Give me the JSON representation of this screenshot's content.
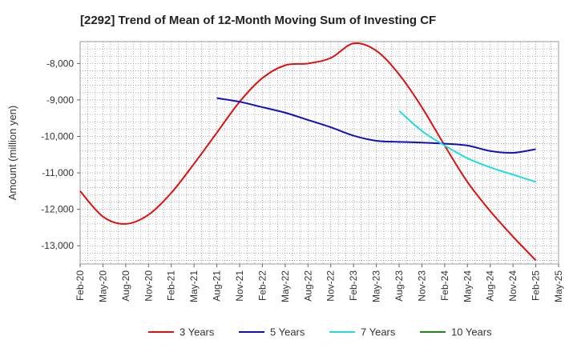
{
  "chart_data": {
    "type": "line",
    "title": "[2292]  Trend of Mean of 12-Month Moving Sum of Investing CF",
    "xlabel": "",
    "ylabel": "Amount (million yen)",
    "ylim": [
      -13500,
      -7400
    ],
    "yticks": [
      -8000,
      -9000,
      -10000,
      -11000,
      -12000,
      -13000
    ],
    "ytick_labels": [
      "-8,000",
      "-9,000",
      "-10,000",
      "-11,000",
      "-12,000",
      "-13,000"
    ],
    "x_categories": [
      "Feb-20",
      "May-20",
      "Aug-20",
      "Nov-20",
      "Feb-21",
      "May-21",
      "Aug-21",
      "Nov-21",
      "Feb-22",
      "May-22",
      "Aug-22",
      "Nov-22",
      "Feb-23",
      "May-23",
      "Aug-23",
      "Nov-23",
      "Feb-24",
      "May-24",
      "Aug-24",
      "Nov-24",
      "Feb-25",
      "May-25"
    ],
    "grid": true,
    "series": [
      {
        "name": "3 Years",
        "color": "#dd1111",
        "values": [
          -11500,
          -12200,
          -12400,
          -12150,
          -11550,
          -10750,
          -9900,
          -9050,
          -8400,
          -8050,
          -8000,
          -7850,
          -7450,
          -7650,
          -8300,
          -9200,
          -10250,
          -11250,
          -12050,
          -12750,
          -13400,
          null
        ]
      },
      {
        "name": "5 Years",
        "color": "#1111bb",
        "values": [
          null,
          null,
          null,
          null,
          null,
          null,
          -8950,
          -9050,
          -9200,
          -9350,
          -9550,
          -9750,
          -9980,
          -10120,
          -10150,
          -10170,
          -10200,
          -10250,
          -10400,
          -10450,
          -10350,
          null
        ]
      },
      {
        "name": "7 Years",
        "color": "#22dddd",
        "values": [
          null,
          null,
          null,
          null,
          null,
          null,
          null,
          null,
          null,
          null,
          null,
          null,
          null,
          null,
          -9300,
          -9850,
          -10250,
          -10600,
          -10850,
          -11050,
          -11250,
          null
        ]
      },
      {
        "name": "10 Years",
        "color": "#228822",
        "values": [
          null,
          null,
          null,
          null,
          null,
          null,
          null,
          null,
          null,
          null,
          null,
          null,
          null,
          null,
          null,
          null,
          null,
          null,
          null,
          null,
          null,
          null
        ]
      }
    ],
    "legend_position": "bottom"
  }
}
